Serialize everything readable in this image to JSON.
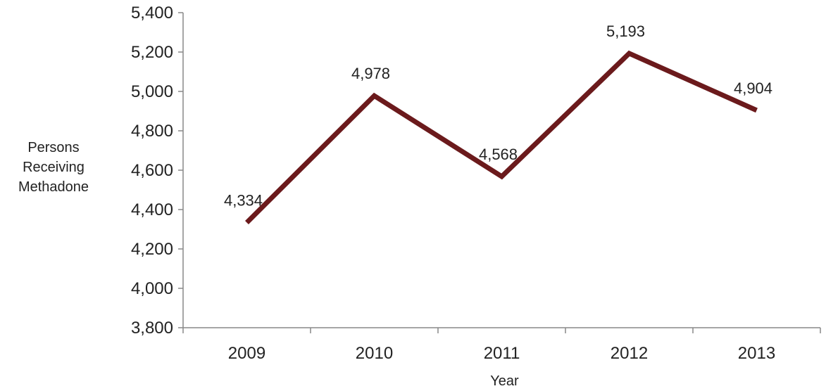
{
  "chart_data": {
    "type": "line",
    "title": "",
    "xlabel": "Year",
    "ylabel_lines": [
      "Persons",
      "Receiving",
      "Methadone"
    ],
    "categories": [
      "2009",
      "2010",
      "2011",
      "2012",
      "2013"
    ],
    "series": [
      {
        "values": [
          4334,
          4978,
          4568,
          5193,
          4904
        ],
        "color": "#6b1a1c"
      }
    ],
    "data_labels": [
      "4,334",
      "4,978",
      "4,568",
      "5,193",
      "4,904"
    ],
    "ylim": [
      3800,
      5400
    ],
    "yticks": [
      3800,
      4000,
      4200,
      4400,
      4600,
      4800,
      5000,
      5200,
      5400
    ],
    "ytick_labels": [
      "3,800",
      "4,000",
      "4,200",
      "4,400",
      "4,600",
      "4,800",
      "5,000",
      "5,200",
      "5,400"
    ],
    "grid": false,
    "legend": "none",
    "colors": {
      "axis": "#888888",
      "text": "#222222",
      "line": "#6b1a1c"
    }
  }
}
